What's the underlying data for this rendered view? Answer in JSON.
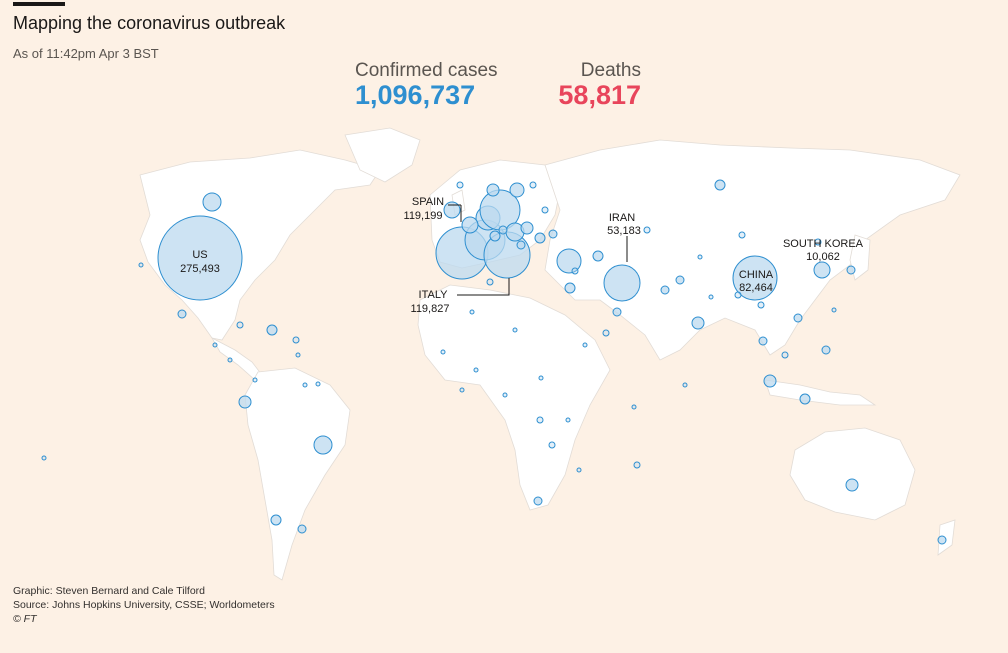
{
  "title": "Mapping the coronavirus outbreak",
  "subtitle": "As of 11:42pm Apr 3 BST",
  "totals": {
    "cases_label": "Confirmed cases",
    "cases_value": "1,096,737",
    "deaths_label": "Deaths",
    "deaths_value": "58,817"
  },
  "labels": {
    "us": {
      "name": "US",
      "value": "275,493"
    },
    "spain": {
      "name": "SPAIN",
      "value": "119,199"
    },
    "italy": {
      "name": "ITALY",
      "value": "119,827"
    },
    "iran": {
      "name": "IRAN",
      "value": "53,183"
    },
    "china": {
      "name": "CHINA",
      "value": "82,464"
    },
    "south_korea": {
      "name": "SOUTH KOREA",
      "value": "10,062"
    }
  },
  "colors": {
    "background": "#fdf1e5",
    "land": "#ffffff",
    "bubble_fill": "#bcd9ef",
    "bubble_stroke": "#2e8fd0",
    "cases_accent": "#2e8fd0",
    "deaths_accent": "#e8455b"
  },
  "footer": {
    "graphic": "Graphic: Steven Bernard and Cale Tilford",
    "source": "Source: Johns Hopkins University, CSSE; Worldometers",
    "copyright": "© FT"
  }
}
